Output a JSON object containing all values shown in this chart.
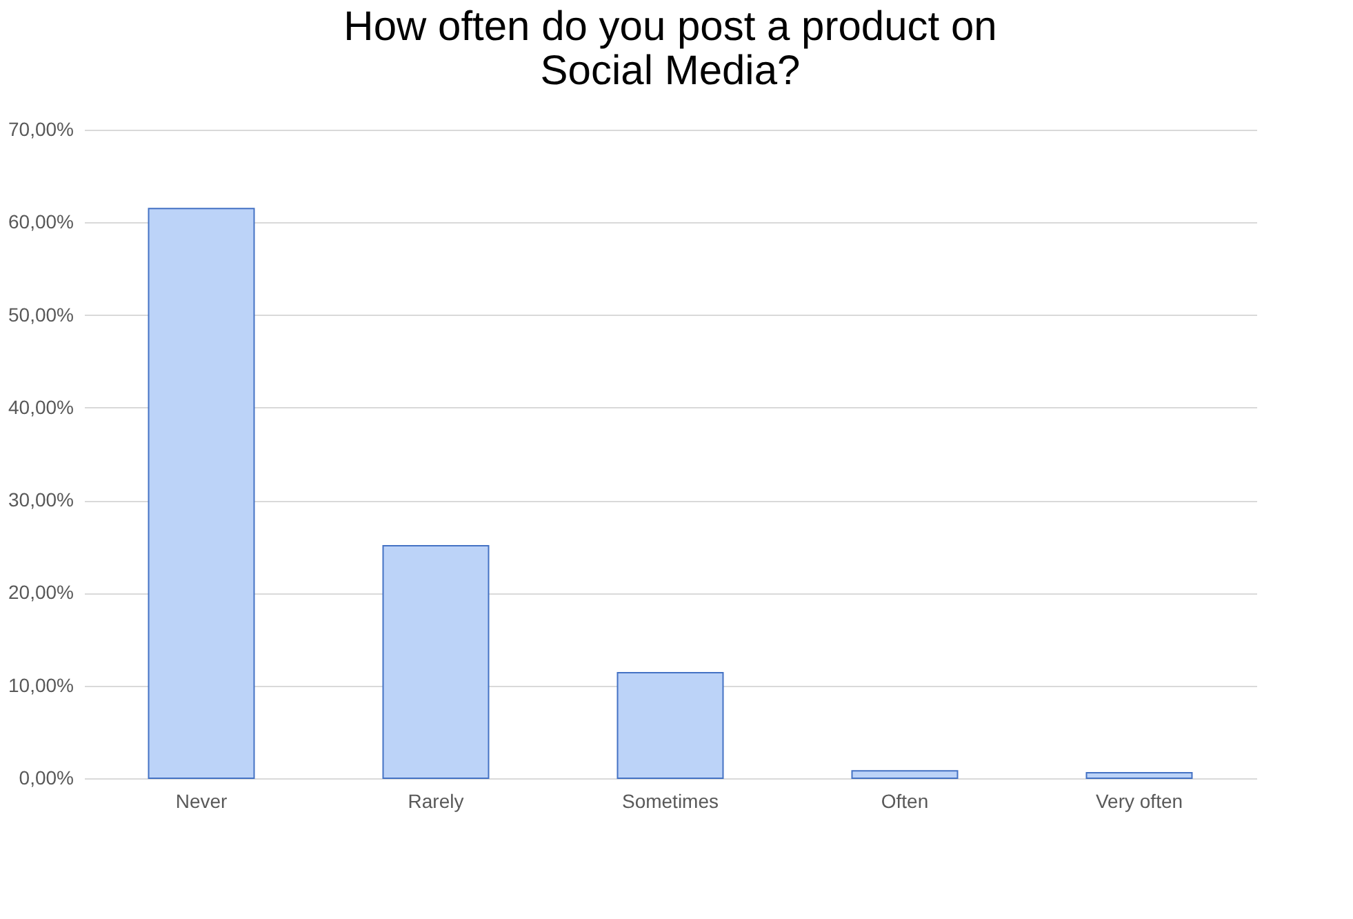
{
  "chart_data": {
    "type": "bar",
    "title": [
      "How often do you post a product on",
      "Social Media?"
    ],
    "categories": [
      "Never",
      "Rarely",
      "Sometimes",
      "Often",
      "Very often"
    ],
    "values": [
      61.5,
      25.1,
      11.4,
      0.8,
      0.6
    ],
    "color": "#bcd3f8",
    "ylim": [
      0,
      70
    ],
    "yticks": [
      {
        "value": 0,
        "label": "0,00%"
      },
      {
        "value": 10,
        "label": "10,00%"
      },
      {
        "value": 20,
        "label": "20,00%"
      },
      {
        "value": 30,
        "label": "30,00%"
      },
      {
        "value": 40,
        "label": "40,00%"
      },
      {
        "value": 50,
        "label": "50,00%"
      },
      {
        "value": 60,
        "label": "60,00%"
      },
      {
        "value": 70,
        "label": "70,00%"
      }
    ],
    "grid": "y"
  }
}
